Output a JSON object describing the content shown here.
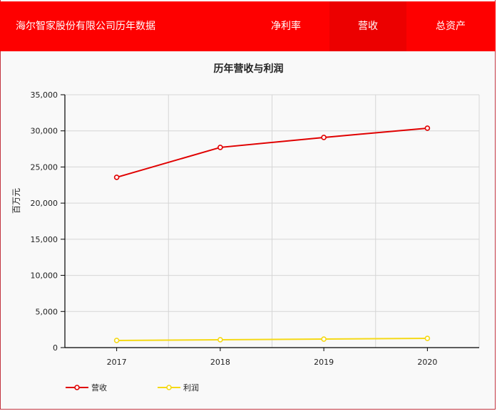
{
  "header": {
    "title": "海尔智家股份有限公司历年数据",
    "nav": [
      {
        "label": "净利率",
        "active": false
      },
      {
        "label": "营收",
        "active": true
      },
      {
        "label": "总资产",
        "active": false
      }
    ],
    "bg_color": "#fe0000"
  },
  "chart": {
    "title": "历年营收与利润",
    "ylabel": "百万元",
    "yticks": [
      "35,000",
      "30,000",
      "25,000",
      "20,000",
      "15,000",
      "10,000",
      "5,000",
      "0"
    ],
    "xticks": [
      "2017",
      "2018",
      "2019",
      "2020"
    ],
    "legend": [
      {
        "label": "营收",
        "color": "#e00000"
      },
      {
        "label": "利润",
        "color": "#f5d916"
      }
    ]
  },
  "chart_data": {
    "type": "line",
    "title": "历年营收与利润",
    "xlabel": "",
    "ylabel": "百万元",
    "categories": [
      "2017",
      "2018",
      "2019",
      "2020"
    ],
    "series": [
      {
        "name": "营收",
        "color": "#e00000",
        "values": [
          23570,
          27710,
          29090,
          30370
        ]
      },
      {
        "name": "利润",
        "color": "#f5d916",
        "values": [
          990,
          1090,
          1180,
          1280
        ]
      }
    ],
    "ylim": [
      0,
      35000
    ],
    "yticks": [
      0,
      5000,
      10000,
      15000,
      20000,
      25000,
      30000,
      35000
    ],
    "grid": true,
    "legend_position": "bottom-left"
  }
}
